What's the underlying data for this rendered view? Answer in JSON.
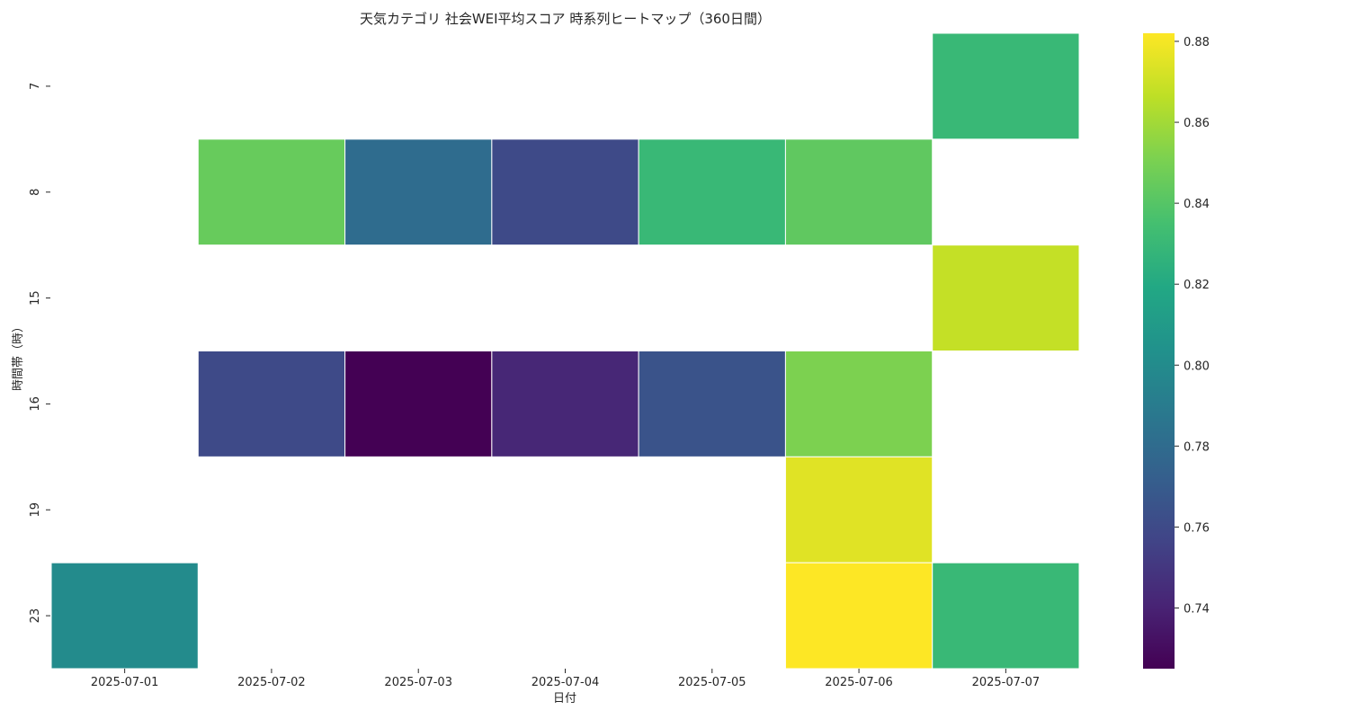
{
  "chart_data": {
    "type": "heatmap",
    "title": "天気カテゴリ 社会WEI平均スコア 時系列ヒートマップ（360日間）",
    "xlabel": "日付",
    "ylabel": "時間帯（時）",
    "x": [
      "2025-07-01",
      "2025-07-02",
      "2025-07-03",
      "2025-07-04",
      "2025-07-05",
      "2025-07-06",
      "2025-07-07"
    ],
    "y": [
      "7",
      "8",
      "15",
      "16",
      "19",
      "23"
    ],
    "values": [
      [
        null,
        null,
        null,
        null,
        null,
        null,
        0.83
      ],
      [
        null,
        0.845,
        0.78,
        0.76,
        0.83,
        0.843,
        null
      ],
      [
        null,
        null,
        null,
        null,
        null,
        null,
        0.868
      ],
      [
        null,
        0.76,
        0.725,
        0.742,
        0.765,
        0.851,
        null
      ],
      [
        null,
        null,
        null,
        null,
        null,
        0.875,
        null
      ],
      [
        0.8,
        null,
        null,
        null,
        null,
        0.882,
        0.83
      ]
    ],
    "colormap": "viridis",
    "vmin": 0.725,
    "vmax": 0.882,
    "colorbar_ticks": [
      "0.74",
      "0.76",
      "0.78",
      "0.80",
      "0.82",
      "0.84",
      "0.86",
      "0.88"
    ],
    "grid": false
  }
}
